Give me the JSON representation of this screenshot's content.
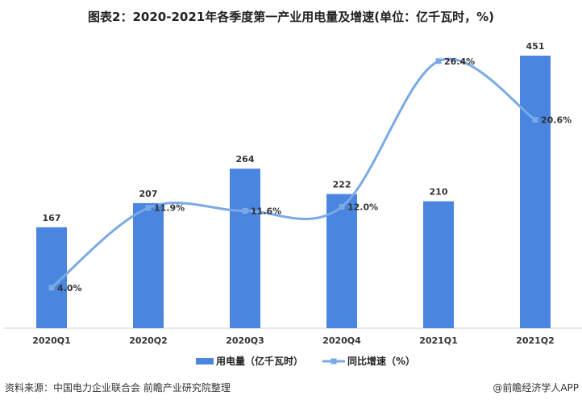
{
  "title": "图表2：2020-2021年各季度第一产业用电量及增速(单位：亿千瓦时，%)",
  "source": "资料来源：中国电力企业联合会 前瞻产业研究院整理",
  "credit": "@前瞻经济学人APP",
  "chart_data": {
    "type": "bar+line",
    "categories": [
      "2020Q1",
      "2020Q2",
      "2020Q3",
      "2020Q4",
      "2021Q1",
      "2021Q2"
    ],
    "series": [
      {
        "name": "用电量（亿千瓦时）",
        "type": "bar",
        "values": [
          167,
          207,
          264,
          222,
          210,
          451
        ],
        "labels": [
          "167",
          "207",
          "264",
          "222",
          "210",
          "451"
        ],
        "color": "#4a86e0"
      },
      {
        "name": "同比增速（%）",
        "type": "line",
        "values": [
          4.0,
          11.9,
          11.6,
          12.0,
          26.4,
          20.6
        ],
        "labels": [
          "4.0%",
          "11.9%",
          "11.6%",
          "12.0%",
          "26.4%",
          "20.6%"
        ],
        "color": "#7aa9e6"
      }
    ],
    "y1lim": [
      0,
      451
    ],
    "y2lim": [
      0,
      26.4
    ],
    "legend": "bottom",
    "grid": false
  }
}
